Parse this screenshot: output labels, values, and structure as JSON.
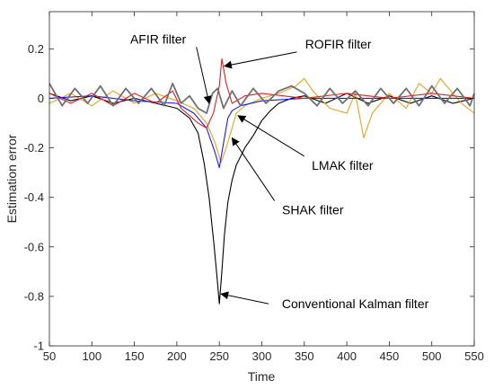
{
  "chart_data": {
    "type": "line",
    "title": "",
    "xlabel": "Time",
    "ylabel": "Estimation error",
    "xlim": [
      50,
      550
    ],
    "ylim": [
      -1,
      0.35
    ],
    "xticks": [
      50,
      100,
      150,
      200,
      250,
      300,
      350,
      400,
      450,
      500,
      550
    ],
    "yticks": [
      -1,
      -0.8,
      -0.6,
      -0.4,
      -0.2,
      0,
      0.2
    ],
    "ytick_labels": [
      "-1",
      "-0.8",
      "-0.6",
      "-0.4",
      "-0.2",
      "0",
      "0.2"
    ],
    "grid": false,
    "series": [
      {
        "name": "Conventional Kalman filter",
        "color": "#000000",
        "points": [
          [
            50,
            0.02
          ],
          [
            75,
            -0.01
          ],
          [
            100,
            0.01
          ],
          [
            125,
            -0.02
          ],
          [
            150,
            0.0
          ],
          [
            175,
            -0.02
          ],
          [
            200,
            -0.04
          ],
          [
            215,
            -0.08
          ],
          [
            225,
            -0.14
          ],
          [
            232,
            -0.26
          ],
          [
            238,
            -0.4
          ],
          [
            244,
            -0.6
          ],
          [
            248,
            -0.75
          ],
          [
            250,
            -0.83
          ],
          [
            253,
            -0.7
          ],
          [
            256,
            -0.55
          ],
          [
            260,
            -0.42
          ],
          [
            265,
            -0.33
          ],
          [
            270,
            -0.27
          ],
          [
            280,
            -0.2
          ],
          [
            290,
            -0.15
          ],
          [
            300,
            -0.09
          ],
          [
            310,
            -0.05
          ],
          [
            320,
            -0.02
          ],
          [
            335,
            0.0
          ],
          [
            350,
            0.01
          ],
          [
            375,
            -0.02
          ],
          [
            400,
            0.02
          ],
          [
            425,
            -0.02
          ],
          [
            450,
            0.01
          ],
          [
            475,
            -0.02
          ],
          [
            500,
            0.01
          ],
          [
            525,
            -0.02
          ],
          [
            550,
            0.0
          ]
        ]
      },
      {
        "name": "SHAK filter",
        "color": "#e8a020",
        "points": [
          [
            50,
            -0.02
          ],
          [
            75,
            0.02
          ],
          [
            100,
            -0.03
          ],
          [
            125,
            0.03
          ],
          [
            150,
            -0.02
          ],
          [
            175,
            0.02
          ],
          [
            200,
            -0.01
          ],
          [
            220,
            -0.04
          ],
          [
            235,
            -0.1
          ],
          [
            245,
            -0.18
          ],
          [
            252,
            -0.26
          ],
          [
            258,
            -0.2
          ],
          [
            265,
            -0.12
          ],
          [
            270,
            -0.06
          ],
          [
            280,
            -0.03
          ],
          [
            300,
            0.0
          ],
          [
            320,
            0.02
          ],
          [
            340,
            0.05
          ],
          [
            350,
            0.08
          ],
          [
            360,
            0.03
          ],
          [
            380,
            -0.04
          ],
          [
            400,
            -0.06
          ],
          [
            410,
            0.02
          ],
          [
            420,
            -0.16
          ],
          [
            430,
            -0.06
          ],
          [
            450,
            0.02
          ],
          [
            470,
            -0.04
          ],
          [
            485,
            0.06
          ],
          [
            500,
            0.02
          ],
          [
            510,
            0.08
          ],
          [
            520,
            0.04
          ],
          [
            535,
            -0.02
          ],
          [
            550,
            -0.06
          ]
        ]
      },
      {
        "name": "LMAK filter",
        "color": "#1a1aff",
        "points": [
          [
            50,
            0.0
          ],
          [
            100,
            0.01
          ],
          [
            150,
            -0.01
          ],
          [
            200,
            -0.02
          ],
          [
            220,
            -0.06
          ],
          [
            235,
            -0.12
          ],
          [
            245,
            -0.22
          ],
          [
            250,
            -0.28
          ],
          [
            255,
            -0.18
          ],
          [
            260,
            -0.08
          ],
          [
            265,
            -0.05
          ],
          [
            275,
            -0.03
          ],
          [
            300,
            -0.01
          ],
          [
            350,
            0.0
          ],
          [
            400,
            0.0
          ],
          [
            450,
            0.0
          ],
          [
            500,
            0.0
          ],
          [
            550,
            0.0
          ]
        ]
      },
      {
        "name": "ROFIR filter",
        "color": "#e02020",
        "points": [
          [
            50,
            0.02
          ],
          [
            75,
            -0.02
          ],
          [
            100,
            0.02
          ],
          [
            125,
            -0.03
          ],
          [
            150,
            0.02
          ],
          [
            175,
            -0.02
          ],
          [
            195,
            0.03
          ],
          [
            205,
            -0.04
          ],
          [
            215,
            -0.07
          ],
          [
            225,
            -0.1
          ],
          [
            235,
            -0.12
          ],
          [
            243,
            -0.06
          ],
          [
            250,
            0.05
          ],
          [
            253,
            0.16
          ],
          [
            258,
            0.06
          ],
          [
            265,
            -0.02
          ],
          [
            280,
            0.01
          ],
          [
            300,
            0.02
          ],
          [
            350,
            0.0
          ],
          [
            400,
            0.02
          ],
          [
            450,
            0.0
          ],
          [
            500,
            0.02
          ],
          [
            550,
            0.0
          ]
        ]
      },
      {
        "name": "AFIR filter",
        "color": "#707070",
        "points": [
          [
            50,
            0.06
          ],
          [
            65,
            -0.03
          ],
          [
            80,
            0.04
          ],
          [
            95,
            -0.02
          ],
          [
            110,
            0.05
          ],
          [
            125,
            -0.03
          ],
          [
            140,
            0.04
          ],
          [
            155,
            -0.02
          ],
          [
            170,
            0.04
          ],
          [
            185,
            -0.03
          ],
          [
            195,
            0.06
          ],
          [
            205,
            -0.02
          ],
          [
            215,
            0.01
          ],
          [
            225,
            -0.04
          ],
          [
            235,
            -0.06
          ],
          [
            242,
            0.02
          ],
          [
            248,
            0.04
          ],
          [
            255,
            -0.04
          ],
          [
            265,
            0.03
          ],
          [
            275,
            -0.03
          ],
          [
            290,
            0.04
          ],
          [
            305,
            -0.02
          ],
          [
            320,
            0.03
          ],
          [
            335,
            0.05
          ],
          [
            350,
            0.02
          ],
          [
            365,
            -0.03
          ],
          [
            380,
            0.04
          ],
          [
            395,
            -0.02
          ],
          [
            410,
            0.03
          ],
          [
            425,
            -0.03
          ],
          [
            440,
            0.04
          ],
          [
            455,
            -0.02
          ],
          [
            470,
            0.04
          ],
          [
            485,
            -0.03
          ],
          [
            500,
            0.05
          ],
          [
            515,
            -0.02
          ],
          [
            530,
            0.04
          ],
          [
            545,
            -0.03
          ],
          [
            550,
            0.02
          ]
        ]
      }
    ],
    "annotations": [
      {
        "text": "AFIR filter",
        "text_at": [
          178,
          0.24
        ],
        "arrow_to": [
          238,
          -0.02
        ]
      },
      {
        "text": "ROFIR filter",
        "text_at": [
          390,
          0.22
        ],
        "arrow_to": [
          256,
          0.13
        ]
      },
      {
        "text": "LMAK filter",
        "text_at": [
          395,
          -0.27
        ],
        "arrow_to": [
          272,
          -0.07
        ]
      },
      {
        "text": "SHAK filter",
        "text_at": [
          360,
          -0.45
        ],
        "arrow_to": [
          265,
          -0.16
        ]
      },
      {
        "text": "Conventional Kalman filter",
        "text_at": [
          410,
          -0.83
        ],
        "arrow_to": [
          252,
          -0.79
        ]
      }
    ]
  }
}
